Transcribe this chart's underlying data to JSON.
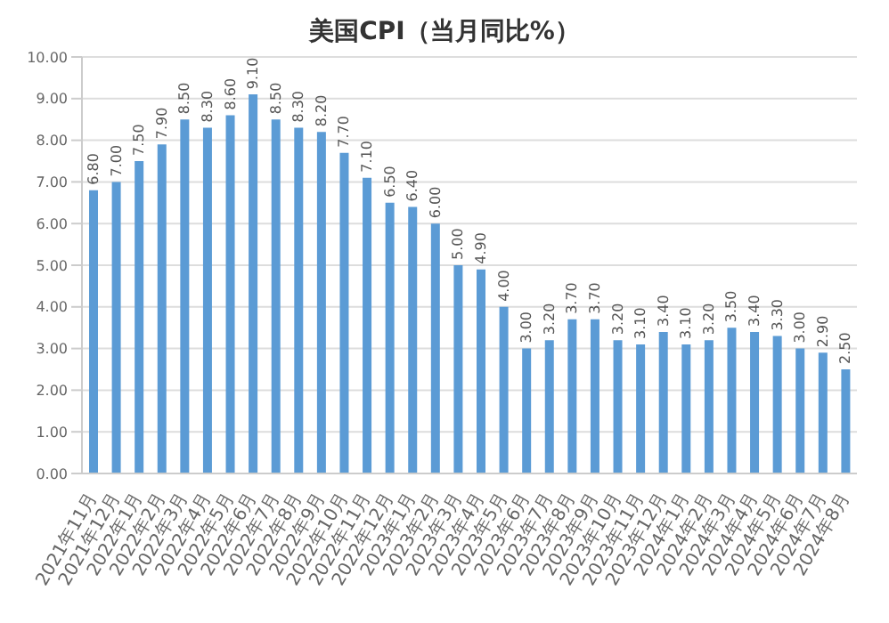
{
  "chart_data": {
    "type": "bar",
    "title": "美国CPI（当月同比%）",
    "categories": [
      "2021年11月",
      "2021年12月",
      "2022年1月",
      "2022年2月",
      "2022年3月",
      "2022年4月",
      "2022年5月",
      "2022年6月",
      "2022年7月",
      "2022年8月",
      "2022年9月",
      "2022年10月",
      "2022年11月",
      "2022年12月",
      "2023年1月",
      "2023年2月",
      "2023年3月",
      "2023年4月",
      "2023年5月",
      "2023年6月",
      "2023年7月",
      "2023年8月",
      "2023年9月",
      "2023年10月",
      "2023年11月",
      "2023年12月",
      "2024年1月",
      "2024年2月",
      "2024年3月",
      "2024年4月",
      "2024年5月",
      "2024年6月",
      "2024年7月",
      "2024年8月"
    ],
    "values": [
      6.8,
      7.0,
      7.5,
      7.9,
      8.5,
      8.3,
      8.6,
      9.1,
      8.5,
      8.3,
      8.2,
      7.7,
      7.1,
      6.5,
      6.4,
      6.0,
      5.0,
      4.9,
      4.0,
      3.0,
      3.2,
      3.7,
      3.7,
      3.2,
      3.1,
      3.4,
      3.1,
      3.2,
      3.5,
      3.4,
      3.3,
      3.0,
      2.9,
      2.5
    ],
    "value_labels": [
      "6.80",
      "7.00",
      "7.50",
      "7.90",
      "8.50",
      "8.30",
      "8.60",
      "9.10",
      "8.50",
      "8.30",
      "8.20",
      "7.70",
      "7.10",
      "6.50",
      "6.40",
      "6.00",
      "5.00",
      "4.90",
      "4.00",
      "3.00",
      "3.20",
      "3.70",
      "3.70",
      "3.20",
      "3.10",
      "3.40",
      "3.10",
      "3.20",
      "3.50",
      "3.40",
      "3.30",
      "3.00",
      "2.90",
      "2.50"
    ],
    "color": "#5b9bd5",
    "ylim": [
      0,
      10
    ],
    "yticks": [
      {
        "value": 0,
        "label": "0.00"
      },
      {
        "value": 1,
        "label": "1.00"
      },
      {
        "value": 2,
        "label": "2.00"
      },
      {
        "value": 3,
        "label": "3.00"
      },
      {
        "value": 4,
        "label": "4.00"
      },
      {
        "value": 5,
        "label": "5.00"
      },
      {
        "value": 6,
        "label": "6.00"
      },
      {
        "value": 7,
        "label": "7.00"
      },
      {
        "value": 8,
        "label": "8.00"
      },
      {
        "value": 9,
        "label": "9.00"
      },
      {
        "value": 10,
        "label": "10.00"
      }
    ],
    "grid": "y"
  }
}
